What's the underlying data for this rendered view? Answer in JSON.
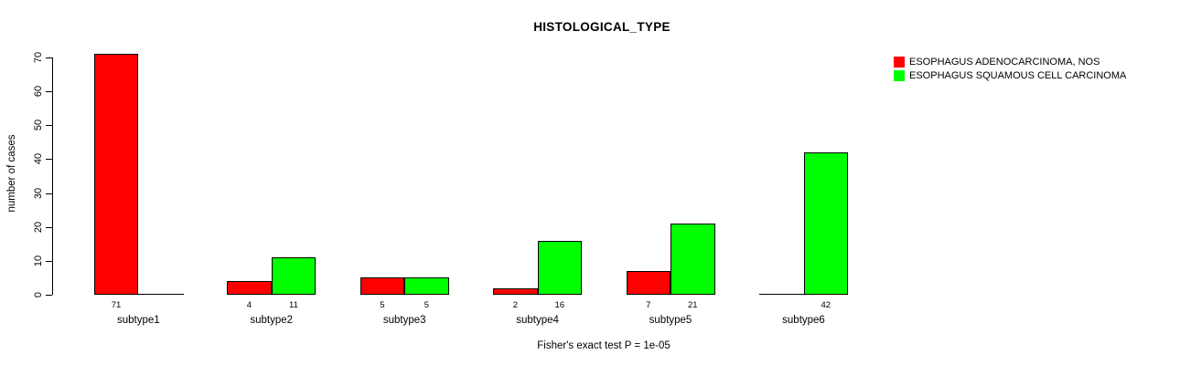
{
  "title": "HISTOLOGICAL_TYPE",
  "footer_note": "Fisher's exact test P = 1e-05",
  "colors": {
    "adenocarcinoma_red": "#FF0000",
    "squamous_green": "#00FF00",
    "axis": "#000000",
    "background": "#FFFFFF"
  },
  "legend": {
    "position": "top-right",
    "items": [
      {
        "label": "ESOPHAGUS ADENOCARCINOMA, NOS",
        "color": "#FF0000"
      },
      {
        "label": "ESOPHAGUS SQUAMOUS CELL CARCINOMA",
        "color": "#00FF00"
      }
    ]
  },
  "chart_data": {
    "type": "bar",
    "title": "HISTOLOGICAL_TYPE",
    "xlabel": "",
    "ylabel": "number of cases",
    "ylim": [
      0,
      70
    ],
    "yticks": [
      0,
      10,
      20,
      30,
      40,
      50,
      60,
      70
    ],
    "grid": false,
    "legend_position": "top-right",
    "categories": [
      "subtype1",
      "subtype2",
      "subtype3",
      "subtype4",
      "subtype5",
      "subtype6"
    ],
    "series": [
      {
        "name": "ESOPHAGUS ADENOCARCINOMA, NOS",
        "color": "#FF0000",
        "values": [
          71,
          4,
          5,
          2,
          7,
          0
        ]
      },
      {
        "name": "ESOPHAGUS SQUAMOUS CELL CARCINOMA",
        "color": "#00FF00",
        "values": [
          0,
          11,
          5,
          16,
          21,
          42
        ]
      }
    ],
    "show_value_labels": true,
    "hide_zero_value_labels": true,
    "annotation": "Fisher's exact test P = 1e-05"
  }
}
